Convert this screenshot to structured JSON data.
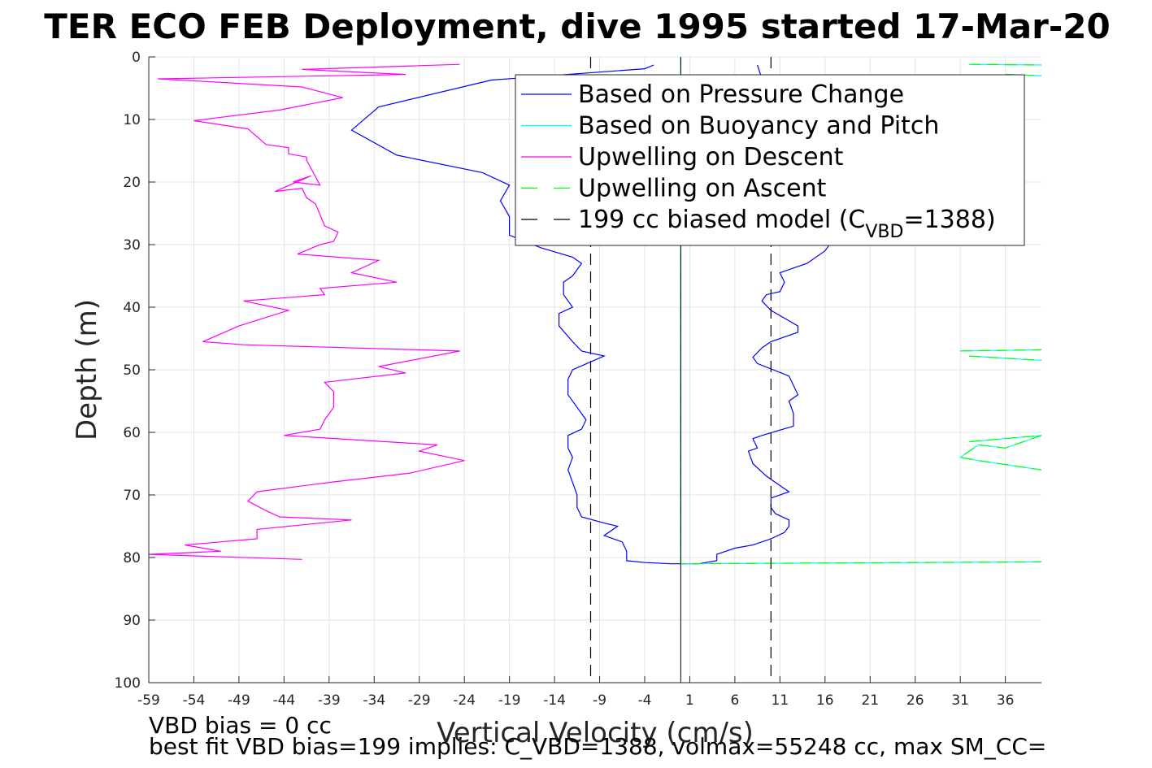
{
  "chart_data": {
    "type": "line",
    "title": "TER ECO FEB Deployment, dive 1995 started 17-Mar-20",
    "xlabel": "Vertical Velocity (cm/s)",
    "ylabel": "Depth (m)",
    "xlim": [
      -59,
      40
    ],
    "ylim": [
      0,
      100
    ],
    "y_reversed": true,
    "grid": true,
    "legend_placement": "top-right",
    "x_ticks": [
      -59,
      -54,
      -49,
      -44,
      -39,
      -34,
      -29,
      -24,
      -19,
      -14,
      -9,
      -4,
      1,
      6,
      11,
      16,
      21,
      26,
      31,
      36
    ],
    "y_ticks": [
      0,
      10,
      20,
      30,
      40,
      50,
      60,
      70,
      80,
      90,
      100
    ],
    "legend": [
      {
        "label": "Based on Pressure Change",
        "color": "#0000ff",
        "dash": "solid"
      },
      {
        "label": "Based on Buoyancy and Pitch",
        "color": "#00ffff",
        "dash": "solid"
      },
      {
        "label": "Upwelling on Descent",
        "color": "#ff00ff",
        "dash": "solid"
      },
      {
        "label": "Upwelling on Ascent",
        "color": "#00ff00",
        "dash": "dashed"
      },
      {
        "label_main": "199 cc biased model (C",
        "label_sub": "VBD",
        "label_end": "=1388)",
        "color": "#000000",
        "dash": "dashed"
      }
    ],
    "series": [
      {
        "name": "Based on Pressure Change",
        "color": "#0000ff",
        "points": [
          [
            -3,
            1.3
          ],
          [
            -4,
            1.9
          ],
          [
            -21,
            3.7
          ],
          [
            -33.5,
            8
          ],
          [
            -36.5,
            11.7
          ],
          [
            -31.5,
            15.7
          ],
          [
            -22,
            18.5
          ],
          [
            -19,
            20.5
          ],
          [
            -20,
            23
          ],
          [
            -19,
            25.5
          ],
          [
            -19,
            28.5
          ],
          [
            -15.5,
            30.5
          ],
          [
            -12,
            32
          ],
          [
            -11,
            33
          ],
          [
            -12,
            35
          ],
          [
            -13,
            36
          ],
          [
            -13,
            38
          ],
          [
            -12,
            40
          ],
          [
            -13.5,
            41
          ],
          [
            -13.5,
            43
          ],
          [
            -12,
            45.5
          ],
          [
            -11,
            47
          ],
          [
            -8.5,
            47.8
          ],
          [
            -12,
            50
          ],
          [
            -12.5,
            51.5
          ],
          [
            -12.5,
            54
          ],
          [
            -11.5,
            56
          ],
          [
            -10.5,
            58
          ],
          [
            -11,
            59.5
          ],
          [
            -12.5,
            60.5
          ],
          [
            -12.5,
            62.5
          ],
          [
            -12,
            64
          ],
          [
            -12.5,
            66
          ],
          [
            -12,
            68
          ],
          [
            -11.5,
            70
          ],
          [
            -11.5,
            72
          ],
          [
            -11,
            73.5
          ],
          [
            -8.5,
            74.5
          ],
          [
            -7,
            75
          ],
          [
            -8.5,
            76.5
          ],
          [
            -6.5,
            77.5
          ],
          [
            -6,
            79
          ],
          [
            -6,
            80.5
          ],
          [
            -4,
            80.8
          ],
          [
            -1,
            81
          ],
          [
            2,
            81
          ],
          [
            4,
            80.5
          ],
          [
            4,
            79.5
          ],
          [
            6,
            78.5
          ],
          [
            8,
            78
          ],
          [
            10,
            77
          ],
          [
            11.5,
            76
          ],
          [
            12,
            75
          ],
          [
            12,
            74
          ],
          [
            10.5,
            73
          ],
          [
            10,
            72
          ],
          [
            10,
            70.5
          ],
          [
            12,
            69.5
          ],
          [
            11,
            68.5
          ],
          [
            9.5,
            67
          ],
          [
            8,
            65
          ],
          [
            7.5,
            63
          ],
          [
            8.5,
            62.5
          ],
          [
            8,
            61
          ],
          [
            9,
            60.5
          ],
          [
            12.5,
            59
          ],
          [
            12.5,
            57
          ],
          [
            12,
            55
          ],
          [
            13,
            54
          ],
          [
            12,
            51
          ],
          [
            8.5,
            49
          ],
          [
            8,
            48
          ],
          [
            9,
            46.5
          ],
          [
            10,
            45.5
          ],
          [
            13,
            44
          ],
          [
            13,
            43
          ],
          [
            10,
            40.5
          ],
          [
            9,
            39
          ],
          [
            9.5,
            38
          ],
          [
            11,
            37.5
          ],
          [
            11.5,
            36
          ],
          [
            11,
            34.5
          ],
          [
            14,
            33
          ],
          [
            16,
            31
          ],
          [
            17,
            29
          ],
          [
            17,
            26
          ],
          [
            16,
            22
          ],
          [
            13,
            16
          ],
          [
            11,
            8
          ],
          [
            9,
            3.5
          ],
          [
            8.5,
            1.3
          ]
        ]
      },
      {
        "name": "Based on Buoyancy and Pitch",
        "color": "#00ffff",
        "points": [
          [
            0,
            0
          ],
          [
            0,
            81
          ],
          [
            40,
            80.7
          ],
          [
            null,
            null
          ],
          [
            32,
            1.2
          ],
          [
            40,
            1.3
          ],
          [
            null,
            null
          ],
          [
            36,
            2.8
          ],
          [
            40,
            3
          ],
          [
            null,
            null
          ],
          [
            31,
            47
          ],
          [
            40,
            46.8
          ],
          [
            null,
            null
          ],
          [
            32,
            47.8
          ],
          [
            40,
            48.5
          ],
          [
            null,
            null
          ],
          [
            32,
            61.5
          ],
          [
            40,
            60.5
          ],
          [
            36,
            62.5
          ],
          [
            33,
            62
          ],
          [
            31,
            64
          ],
          [
            33,
            64.5
          ],
          [
            40,
            66
          ],
          [
            null,
            null
          ]
        ]
      },
      {
        "name": "Upwelling on Descent",
        "color": "#ff00ff",
        "points": [
          [
            -24.5,
            1.2
          ],
          [
            -42,
            2
          ],
          [
            -30.5,
            2.8
          ],
          [
            -58,
            3.5
          ],
          [
            -42,
            4.8
          ],
          [
            -37.5,
            6.5
          ],
          [
            -44.5,
            8.5
          ],
          [
            -54,
            10.2
          ],
          [
            -48,
            11.5
          ],
          [
            -46,
            14
          ],
          [
            -43.5,
            14.5
          ],
          [
            -43.5,
            15.5
          ],
          [
            -41.5,
            16
          ],
          [
            -41.5,
            16.5
          ],
          [
            -40,
            20.5
          ],
          [
            -43,
            20
          ],
          [
            -41,
            19
          ],
          [
            -45,
            21.5
          ],
          [
            -42,
            21
          ],
          [
            -41.5,
            22.5
          ],
          [
            -40.5,
            23.5
          ],
          [
            -39.5,
            27
          ],
          [
            -38,
            28
          ],
          [
            -38.5,
            29.5
          ],
          [
            -40,
            30
          ],
          [
            -42.5,
            31.5
          ],
          [
            -33.5,
            32.5
          ],
          [
            -36.5,
            34.5
          ],
          [
            -31.5,
            36
          ],
          [
            -40,
            37
          ],
          [
            -39.5,
            38
          ],
          [
            -48.5,
            39
          ],
          [
            -43.5,
            40.5
          ],
          [
            -49,
            43
          ],
          [
            -53,
            45.5
          ],
          [
            -48.5,
            46
          ],
          [
            -24.5,
            47
          ],
          [
            -33.5,
            49.5
          ],
          [
            -30.5,
            50.5
          ],
          [
            -39.5,
            52
          ],
          [
            -38.5,
            53.5
          ],
          [
            -38.5,
            56
          ],
          [
            -39.5,
            58
          ],
          [
            -40,
            59.5
          ],
          [
            -44,
            60.5
          ],
          [
            -27,
            62
          ],
          [
            -29,
            63
          ],
          [
            -24,
            64.5
          ],
          [
            -30,
            66.5
          ],
          [
            -39,
            68
          ],
          [
            -47,
            69.5
          ],
          [
            -48,
            71
          ],
          [
            -46,
            72.5
          ],
          [
            -44.5,
            73.5
          ],
          [
            -36.5,
            74
          ],
          [
            -47,
            75.5
          ],
          [
            -47,
            77
          ],
          [
            -55,
            78
          ],
          [
            -51,
            79
          ],
          [
            -59,
            79.5
          ],
          [
            -42,
            80.3
          ]
        ]
      },
      {
        "name": "Upwelling on Ascent",
        "color": "#00ff00",
        "dash": "dashed",
        "points": [
          [
            0,
            0
          ],
          [
            0,
            81
          ],
          [
            40,
            80.7
          ],
          [
            null,
            null
          ],
          [
            32,
            1.2
          ],
          [
            40,
            1.3
          ],
          [
            null,
            null
          ],
          [
            36,
            2.8
          ],
          [
            40,
            3
          ],
          [
            null,
            null
          ],
          [
            31,
            47
          ],
          [
            40,
            46.8
          ],
          [
            null,
            null
          ],
          [
            32,
            47.8
          ],
          [
            40,
            48.5
          ],
          [
            null,
            null
          ],
          [
            32,
            61.5
          ],
          [
            40,
            60.5
          ],
          [
            36,
            62.5
          ],
          [
            33,
            62
          ],
          [
            31,
            64
          ],
          [
            33,
            64.5
          ],
          [
            40,
            66
          ],
          [
            null,
            null
          ]
        ]
      },
      {
        "name": "199 cc biased model (CVBD=1388)",
        "color": "#000000",
        "dash": "dashed",
        "points": [
          [
            -10,
            0
          ],
          [
            -10,
            100
          ],
          [
            null,
            null
          ],
          [
            10,
            0
          ],
          [
            10,
            100
          ]
        ]
      }
    ],
    "vertical_zero_line": {
      "x": 0,
      "color": "#000000"
    },
    "footnotes": [
      "VBD bias = 0 cc",
      "best fit VBD bias=199 implies: C_VBD=1388, volmax=55248 cc, max SM_CC="
    ]
  }
}
